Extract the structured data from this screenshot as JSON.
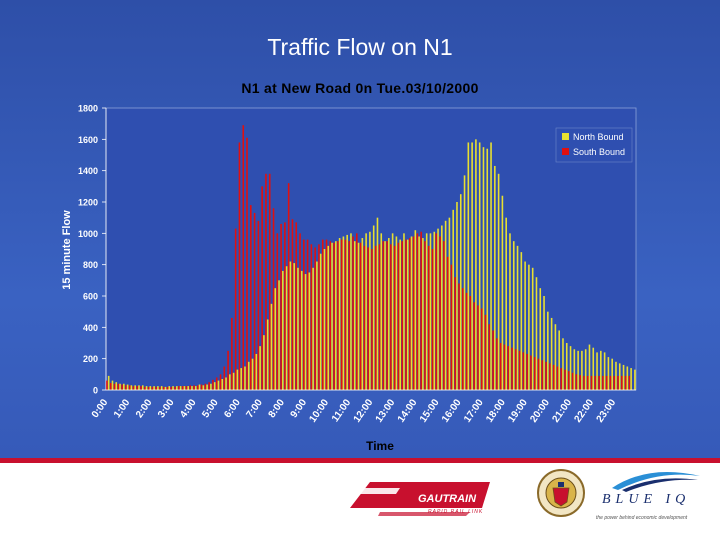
{
  "slide_title": "Traffic Flow on N1",
  "chart_data": {
    "type": "bar",
    "title": "N1 at New Road 0n Tue.03/10/2000",
    "xlabel": "Time",
    "ylabel": "15 minute Flow",
    "ylim": [
      0,
      1800
    ],
    "y_ticks": [
      "0",
      "200",
      "400",
      "600",
      "800",
      "1000",
      "1200",
      "1400",
      "1600",
      "1800"
    ],
    "x_tick_labels": [
      "0:00",
      "1:00",
      "2:00",
      "3:00",
      "4:00",
      "5:00",
      "6:00",
      "7:00",
      "8:00",
      "9:00",
      "10:00",
      "11:00",
      "12:00",
      "13:00",
      "14:00",
      "15:00",
      "16:00",
      "17:00",
      "18:00",
      "19:00",
      "20:00",
      "21:00",
      "22:00",
      "23:00"
    ],
    "grid": false,
    "legend_position": "top-right",
    "series": [
      {
        "name": "North Bound",
        "color": "#e8e030",
        "values": [
          90,
          60,
          50,
          40,
          40,
          35,
          30,
          30,
          30,
          30,
          25,
          25,
          25,
          25,
          25,
          20,
          25,
          25,
          25,
          25,
          25,
          25,
          25,
          25,
          35,
          30,
          35,
          40,
          50,
          60,
          70,
          80,
          100,
          110,
          130,
          140,
          150,
          180,
          200,
          230,
          280,
          350,
          450,
          550,
          650,
          700,
          760,
          790,
          820,
          810,
          780,
          760,
          740,
          750,
          780,
          820,
          870,
          900,
          920,
          940,
          950,
          970,
          980,
          990,
          1000,
          950,
          940,
          970,
          1000,
          1010,
          1050,
          1100,
          1000,
          950,
          970,
          1000,
          980,
          960,
          1000,
          960,
          980,
          1020,
          980,
          970,
          1000,
          1000,
          1010,
          1030,
          1050,
          1080,
          1100,
          1150,
          1200,
          1250,
          1370,
          1580,
          1580,
          1600,
          1580,
          1550,
          1540,
          1580,
          1430,
          1380,
          1240,
          1100,
          1000,
          950,
          920,
          880,
          820,
          800,
          780,
          720,
          650,
          600,
          500,
          460,
          420,
          380,
          330,
          300,
          280,
          260,
          250,
          250,
          260,
          290,
          270,
          240,
          250,
          240,
          210,
          200,
          180,
          170,
          160,
          150,
          140,
          130
        ]
      },
      {
        "name": "South Bound",
        "color": "#e01010",
        "values": [
          60,
          45,
          40,
          40,
          35,
          30,
          30,
          25,
          25,
          25,
          20,
          20,
          20,
          20,
          20,
          20,
          20,
          20,
          20,
          25,
          25,
          25,
          30,
          30,
          30,
          35,
          40,
          50,
          65,
          80,
          100,
          150,
          250,
          460,
          1030,
          1580,
          1690,
          1610,
          1180,
          1130,
          1080,
          1300,
          1380,
          1380,
          1160,
          1000,
          1060,
          1070,
          1320,
          1090,
          1070,
          1000,
          960,
          960,
          930,
          910,
          930,
          960,
          960,
          950,
          940,
          950,
          960,
          960,
          950,
          980,
          1000,
          940,
          920,
          910,
          900,
          920,
          930,
          950,
          950,
          930,
          920,
          940,
          950,
          960,
          970,
          980,
          1000,
          1010,
          950,
          920,
          900,
          1000,
          980,
          950,
          850,
          800,
          720,
          680,
          650,
          620,
          600,
          560,
          540,
          520,
          480,
          420,
          380,
          330,
          300,
          290,
          280,
          270,
          260,
          250,
          240,
          230,
          220,
          210,
          200,
          190,
          180,
          170,
          160,
          150,
          140,
          130,
          120,
          110,
          100,
          95,
          90,
          90,
          90,
          90,
          90,
          90,
          90,
          90,
          90,
          90,
          90,
          90,
          90
        ]
      }
    ]
  },
  "footer": {
    "gautrain_name": "GAUTRAIN",
    "gautrain_tagline": "RAPID RAIL LINK",
    "blueiq_name": "BLUE IQ",
    "blueiq_tagline": "the power behind economic development"
  },
  "colors": {
    "background": "#3a62c2",
    "plot_area": "#2f4fb0",
    "legend_bg": "#2f4fb0",
    "axis_text": "#ffffff",
    "title_text": "#000000"
  }
}
